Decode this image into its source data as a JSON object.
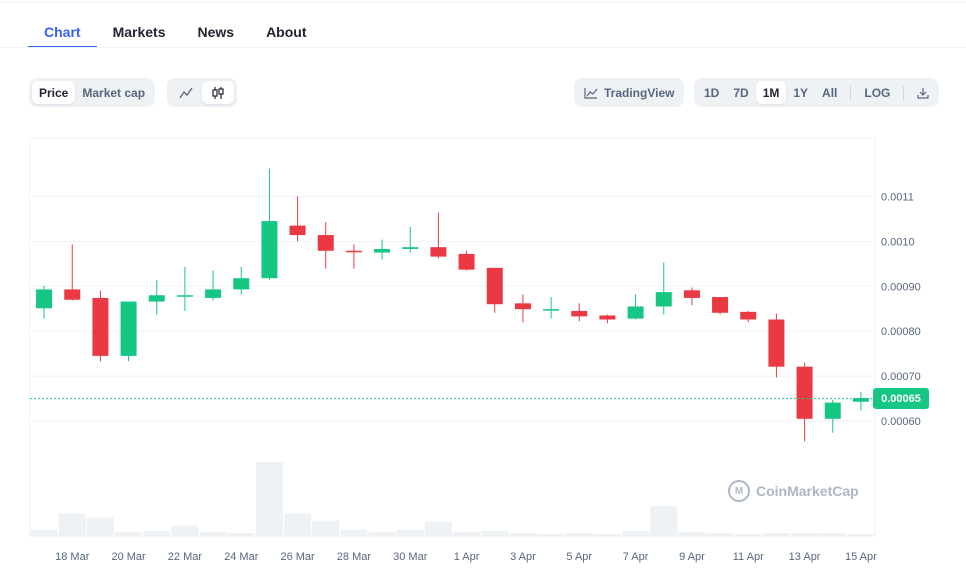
{
  "tabs": [
    {
      "label": "Chart"
    },
    {
      "label": "Markets"
    },
    {
      "label": "News"
    },
    {
      "label": "About"
    }
  ],
  "controls": {
    "metric": [
      "Price",
      "Market cap"
    ],
    "chart_style_icons": [
      "line-chart-icon",
      "candlestick-icon"
    ],
    "tradingview_label": "TradingView",
    "ranges": [
      "1D",
      "7D",
      "1M",
      "1Y",
      "All"
    ],
    "active_range": "1M",
    "log_label": "LOG",
    "download_icon": "download-icon"
  },
  "watermark": "CoinMarketCap",
  "current_price_label": "0.00065",
  "colors": {
    "up": "#16c784",
    "down": "#ea3943",
    "accent": "#3861fb",
    "grid": "#eff2f5",
    "volume": "#eff2f5"
  },
  "chart_data": {
    "type": "candlestick",
    "y_ticks": [
      "0.0011",
      "0.0010",
      "0.00090",
      "0.00080",
      "0.00070",
      "0.00060"
    ],
    "y_tick_values": [
      0.0011,
      0.001,
      0.0009,
      0.0008,
      0.0007,
      0.0006
    ],
    "ylim": [
      0.00054,
      0.00123
    ],
    "x_tick_labels": [
      "18 Mar",
      "20 Mar",
      "22 Mar",
      "24 Mar",
      "26 Mar",
      "28 Mar",
      "30 Mar",
      "1 Apr",
      "3 Apr",
      "5 Apr",
      "7 Apr",
      "9 Apr",
      "11 Apr",
      "13 Apr",
      "15 Apr"
    ],
    "current_price": 0.00065,
    "candles": [
      {
        "date": "17 Mar",
        "open": 0.000851,
        "high": 0.000901,
        "low": 0.000828,
        "close": 0.000893,
        "volume": 6
      },
      {
        "date": "18 Mar",
        "open": 0.000893,
        "high": 0.000993,
        "low": 0.000868,
        "close": 0.00087,
        "volume": 22
      },
      {
        "date": "19 Mar",
        "open": 0.000874,
        "high": 0.00089,
        "low": 0.000733,
        "close": 0.000745,
        "volume": 18
      },
      {
        "date": "20 Mar",
        "open": 0.000745,
        "high": 0.000866,
        "low": 0.000733,
        "close": 0.000866,
        "volume": 4
      },
      {
        "date": "21 Mar",
        "open": 0.000866,
        "high": 0.000914,
        "low": 0.000837,
        "close": 0.00088,
        "volume": 5
      },
      {
        "date": "22 Mar",
        "open": 0.00088,
        "high": 0.000943,
        "low": 0.000845,
        "close": 0.00088,
        "volume": 10
      },
      {
        "date": "23 Mar",
        "open": 0.000874,
        "high": 0.000935,
        "low": 0.000868,
        "close": 0.000893,
        "volume": 4
      },
      {
        "date": "24 Mar",
        "open": 0.000893,
        "high": 0.000943,
        "low": 0.000882,
        "close": 0.000918,
        "volume": 3
      },
      {
        "date": "25 Mar",
        "open": 0.000918,
        "high": 0.001162,
        "low": 0.000914,
        "close": 0.001045,
        "volume": 72
      },
      {
        "date": "26 Mar",
        "open": 0.001035,
        "high": 0.0011,
        "low": 0.001,
        "close": 0.001014,
        "volume": 22
      },
      {
        "date": "27 Mar",
        "open": 0.001014,
        "high": 0.001043,
        "low": 0.000939,
        "close": 0.000979,
        "volume": 15
      },
      {
        "date": "28 Mar",
        "open": 0.000979,
        "high": 0.000993,
        "low": 0.000939,
        "close": 0.000977,
        "volume": 6
      },
      {
        "date": "29 Mar",
        "open": 0.000975,
        "high": 0.001004,
        "low": 0.00096,
        "close": 0.000983,
        "volume": 4
      },
      {
        "date": "30 Mar",
        "open": 0.000983,
        "high": 0.001032,
        "low": 0.000975,
        "close": 0.000987,
        "volume": 6
      },
      {
        "date": "31 Mar",
        "open": 0.000987,
        "high": 0.001064,
        "low": 0.000962,
        "close": 0.000966,
        "volume": 14
      },
      {
        "date": "1 Apr",
        "open": 0.000972,
        "high": 0.000979,
        "low": 0.000935,
        "close": 0.000937,
        "volume": 4
      },
      {
        "date": "2 Apr",
        "open": 0.000941,
        "high": 0.000941,
        "low": 0.000841,
        "close": 0.00086,
        "volume": 5
      },
      {
        "date": "3 Apr",
        "open": 0.000862,
        "high": 0.000882,
        "low": 0.00082,
        "close": 0.000849,
        "volume": 3
      },
      {
        "date": "4 Apr",
        "open": 0.000849,
        "high": 0.000876,
        "low": 0.000828,
        "close": 0.000849,
        "volume": 2
      },
      {
        "date": "5 Apr",
        "open": 0.000845,
        "high": 0.000862,
        "low": 0.000822,
        "close": 0.000833,
        "volume": 3
      },
      {
        "date": "6 Apr",
        "open": 0.000835,
        "high": 0.000837,
        "low": 0.000818,
        "close": 0.000826,
        "volume": 2
      },
      {
        "date": "7 Apr",
        "open": 0.000828,
        "high": 0.000882,
        "low": 0.000826,
        "close": 0.000855,
        "volume": 5
      },
      {
        "date": "8 Apr",
        "open": 0.000855,
        "high": 0.000953,
        "low": 0.000837,
        "close": 0.000887,
        "volume": 29
      },
      {
        "date": "9 Apr",
        "open": 0.000891,
        "high": 0.000897,
        "low": 0.000858,
        "close": 0.000874,
        "volume": 4
      },
      {
        "date": "10 Apr",
        "open": 0.000876,
        "high": 0.000876,
        "low": 0.000837,
        "close": 0.000841,
        "volume": 3
      },
      {
        "date": "11 Apr",
        "open": 0.000843,
        "high": 0.000845,
        "low": 0.00082,
        "close": 0.000826,
        "volume": 2
      },
      {
        "date": "12 Apr",
        "open": 0.000826,
        "high": 0.000839,
        "low": 0.000697,
        "close": 0.000721,
        "volume": 3
      },
      {
        "date": "13 Apr",
        "open": 0.000721,
        "high": 0.00073,
        "low": 0.000555,
        "close": 0.000605,
        "volume": 3
      },
      {
        "date": "14 Apr",
        "open": 0.000605,
        "high": 0.000647,
        "low": 0.000574,
        "close": 0.000641,
        "volume": 3
      },
      {
        "date": "15 Apr",
        "open": 0.000643,
        "high": 0.000665,
        "low": 0.000624,
        "close": 0.000651,
        "volume": 2
      }
    ]
  }
}
